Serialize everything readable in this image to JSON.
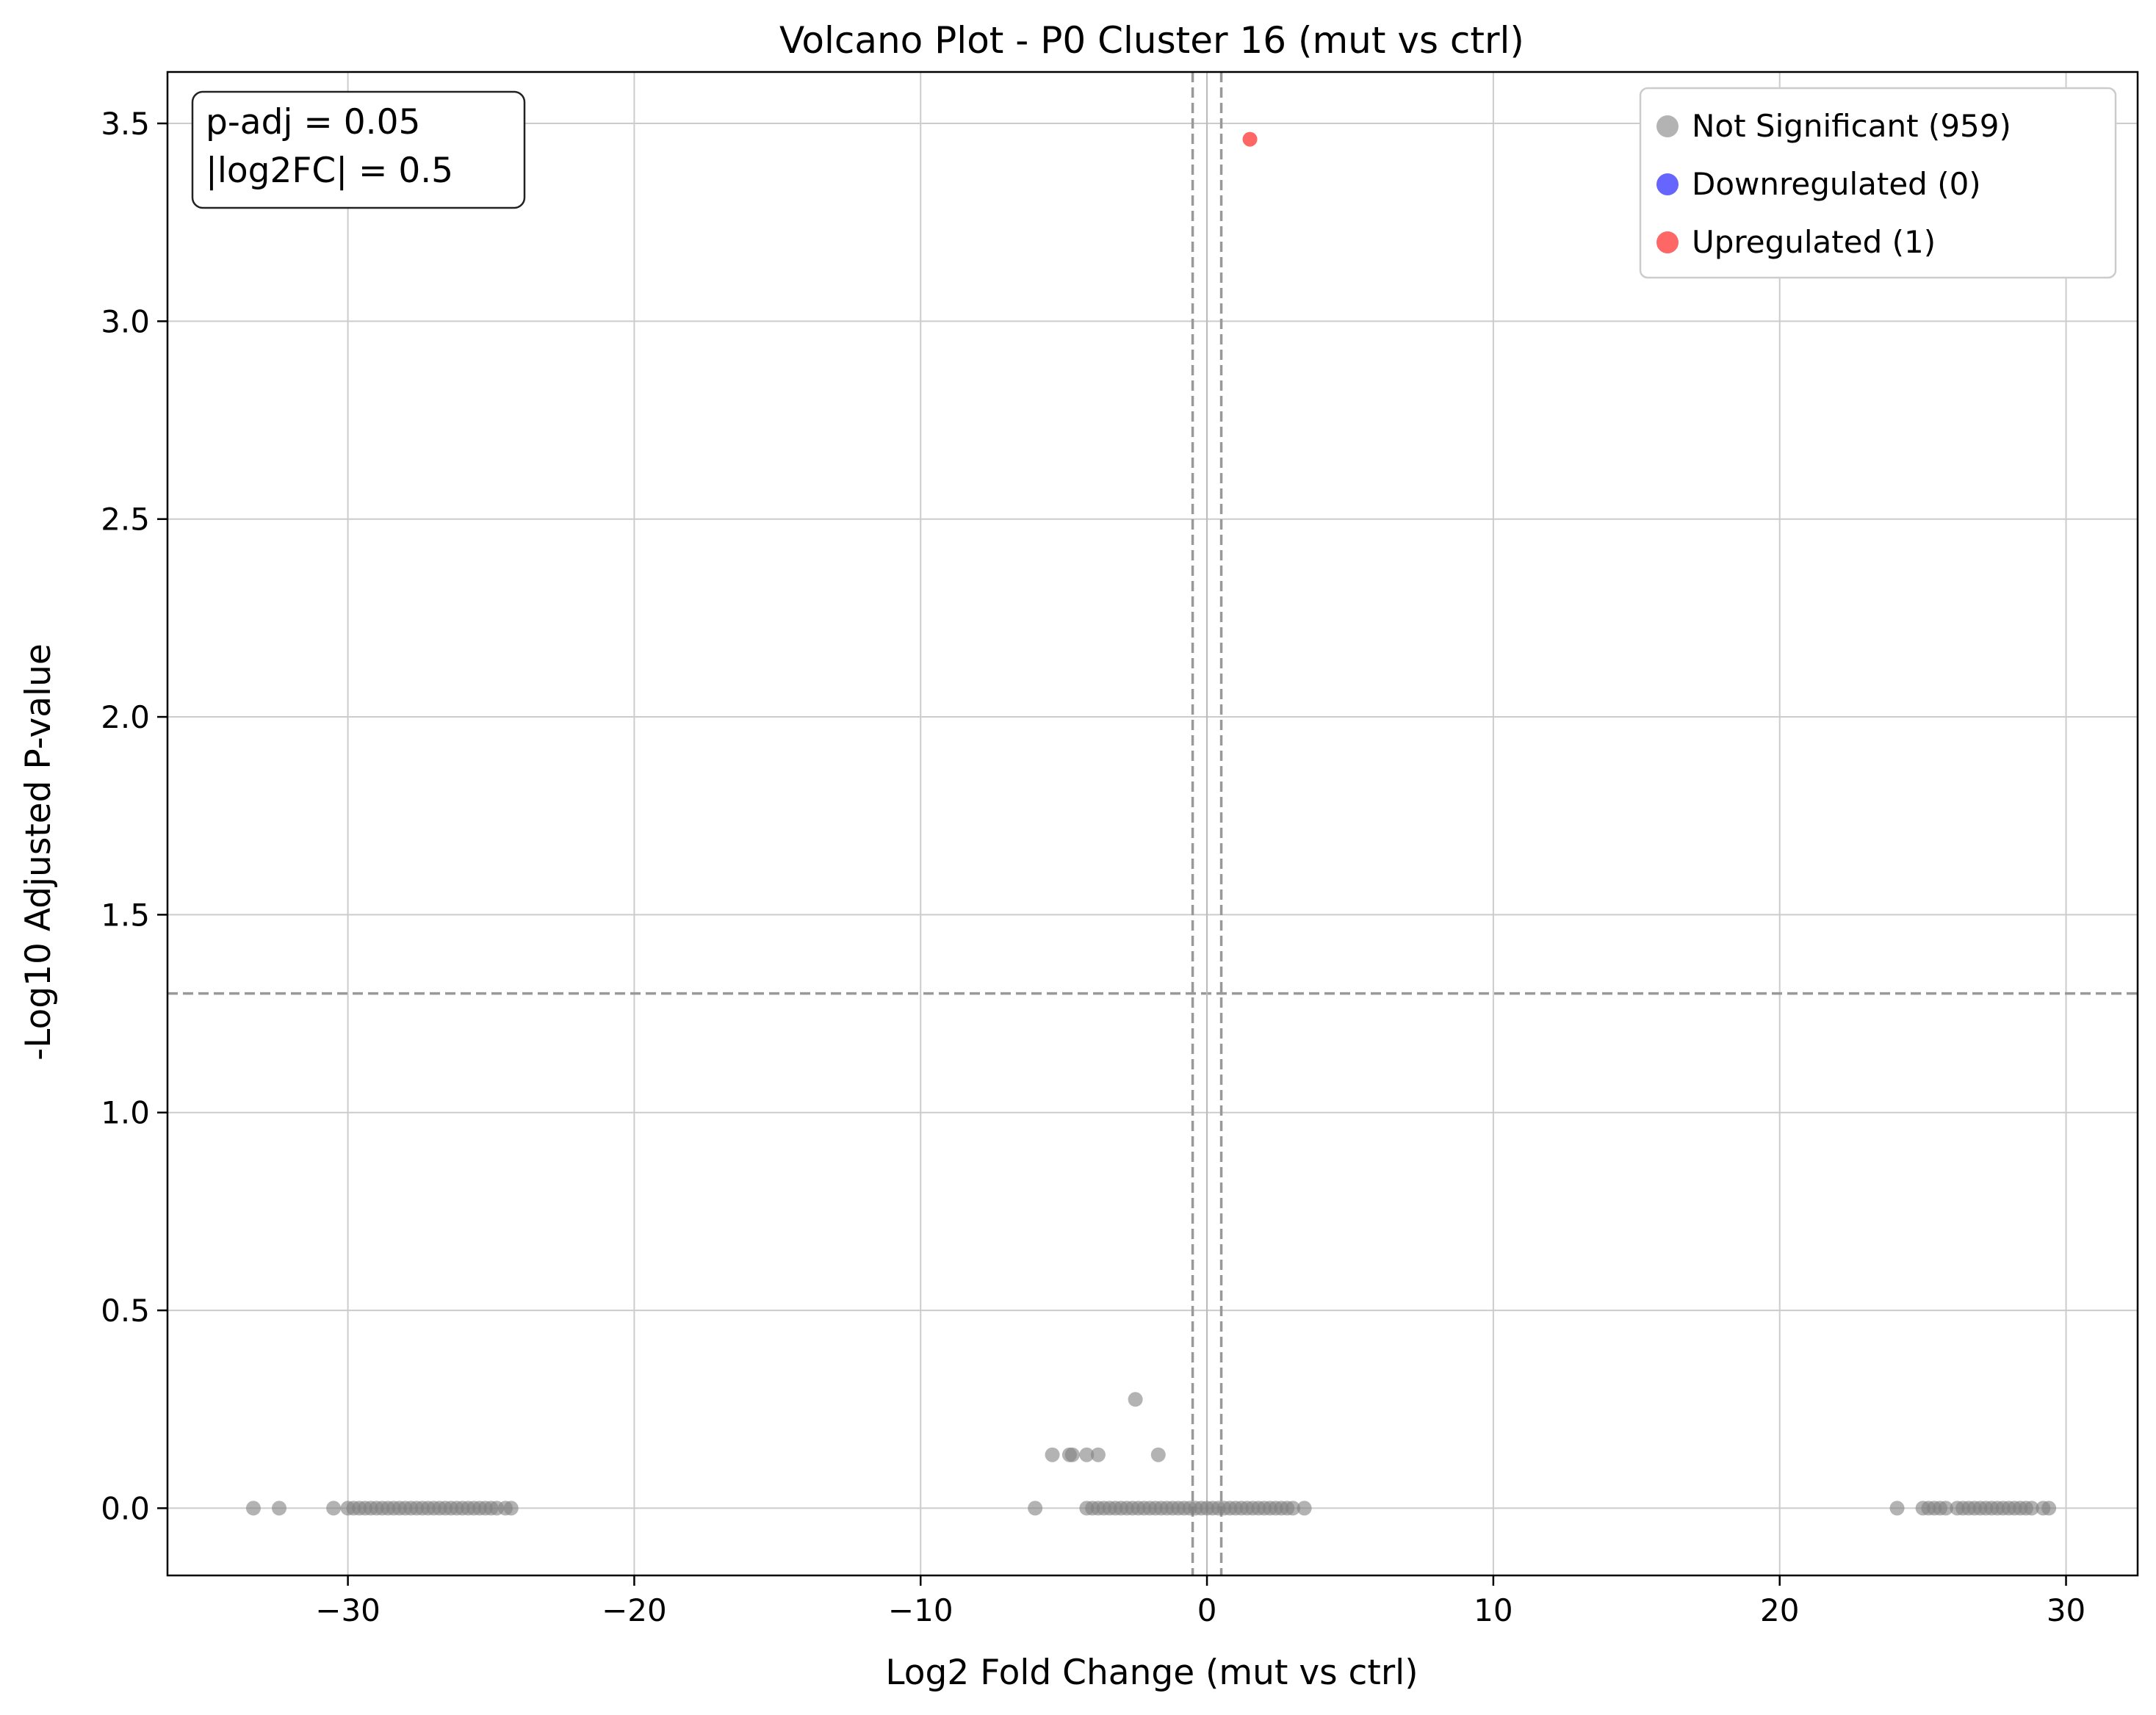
{
  "chart_data": {
    "type": "scatter",
    "title": "Volcano Plot - P0 Cluster 16 (mut vs ctrl)",
    "xlabel": "Log2 Fold Change (mut vs ctrl)",
    "ylabel": "-Log10 Adjusted P-value",
    "xlim": [
      -36.3,
      32.5
    ],
    "ylim": [
      -0.17,
      3.63
    ],
    "xticks": [
      -30,
      -20,
      -10,
      0,
      10,
      20,
      30
    ],
    "xtick_labels": [
      "−30",
      "−20",
      "−10",
      "0",
      "10",
      "20",
      "30"
    ],
    "yticks": [
      0.0,
      0.5,
      1.0,
      1.5,
      2.0,
      2.5,
      3.0,
      3.5
    ],
    "ytick_labels": [
      "0.0",
      "0.5",
      "1.0",
      "1.5",
      "2.0",
      "2.5",
      "3.0",
      "3.5"
    ],
    "grid": true,
    "thresholds": {
      "padj_line_y": 1.301,
      "fc_lines_x": [
        -0.5,
        0.5
      ],
      "zero_line_x": 0
    },
    "annotation": [
      "p-adj = 0.05",
      "|log2FC| = 0.5"
    ],
    "legend": {
      "position": "top-right",
      "entries": [
        {
          "label": "Not Significant (959)",
          "color": "#808080"
        },
        {
          "label": "Downregulated (0)",
          "color": "#0000ff"
        },
        {
          "label": "Upregulated (1)",
          "color": "#ff0000"
        }
      ]
    },
    "series": [
      {
        "name": "Not Significant",
        "color": "#808080",
        "points": [
          [
            -33.3,
            0
          ],
          [
            -32.4,
            0
          ],
          [
            -30.5,
            0
          ],
          [
            -30.0,
            0
          ],
          [
            -29.8,
            0
          ],
          [
            -29.6,
            0
          ],
          [
            -29.4,
            0
          ],
          [
            -29.2,
            0
          ],
          [
            -29.0,
            0
          ],
          [
            -28.8,
            0
          ],
          [
            -28.6,
            0
          ],
          [
            -28.4,
            0
          ],
          [
            -28.2,
            0
          ],
          [
            -28.0,
            0
          ],
          [
            -27.8,
            0
          ],
          [
            -27.6,
            0
          ],
          [
            -27.4,
            0
          ],
          [
            -27.2,
            0
          ],
          [
            -27.0,
            0
          ],
          [
            -26.8,
            0
          ],
          [
            -26.6,
            0
          ],
          [
            -26.4,
            0
          ],
          [
            -26.2,
            0
          ],
          [
            -26.0,
            0
          ],
          [
            -25.8,
            0
          ],
          [
            -25.6,
            0
          ],
          [
            -25.4,
            0
          ],
          [
            -25.2,
            0
          ],
          [
            -25.0,
            0
          ],
          [
            -24.8,
            0
          ],
          [
            -24.5,
            0
          ],
          [
            -24.3,
            0
          ],
          [
            -6.0,
            0
          ],
          [
            -4.2,
            0
          ],
          [
            -4.0,
            0
          ],
          [
            -3.8,
            0
          ],
          [
            -3.6,
            0
          ],
          [
            -3.4,
            0
          ],
          [
            -3.2,
            0
          ],
          [
            -3.0,
            0
          ],
          [
            -2.8,
            0
          ],
          [
            -2.6,
            0
          ],
          [
            -2.4,
            0
          ],
          [
            -2.2,
            0
          ],
          [
            -2.0,
            0
          ],
          [
            -1.8,
            0
          ],
          [
            -1.6,
            0
          ],
          [
            -1.4,
            0
          ],
          [
            -1.2,
            0
          ],
          [
            -1.0,
            0
          ],
          [
            -0.8,
            0
          ],
          [
            -0.6,
            0
          ],
          [
            -0.4,
            0
          ],
          [
            -0.2,
            0
          ],
          [
            0.0,
            0
          ],
          [
            0.2,
            0
          ],
          [
            0.4,
            0
          ],
          [
            0.6,
            0
          ],
          [
            0.8,
            0
          ],
          [
            1.0,
            0
          ],
          [
            1.2,
            0
          ],
          [
            1.4,
            0
          ],
          [
            1.6,
            0
          ],
          [
            1.8,
            0
          ],
          [
            2.0,
            0
          ],
          [
            2.2,
            0
          ],
          [
            2.4,
            0
          ],
          [
            2.6,
            0
          ],
          [
            2.8,
            0
          ],
          [
            3.0,
            0
          ],
          [
            3.4,
            0
          ],
          [
            24.1,
            0
          ],
          [
            25.0,
            0
          ],
          [
            25.2,
            0
          ],
          [
            25.4,
            0
          ],
          [
            25.6,
            0
          ],
          [
            25.8,
            0
          ],
          [
            26.2,
            0
          ],
          [
            26.4,
            0
          ],
          [
            26.6,
            0
          ],
          [
            26.8,
            0
          ],
          [
            27.0,
            0
          ],
          [
            27.2,
            0
          ],
          [
            27.4,
            0
          ],
          [
            27.6,
            0
          ],
          [
            27.8,
            0
          ],
          [
            28.0,
            0
          ],
          [
            28.2,
            0
          ],
          [
            28.4,
            0
          ],
          [
            28.6,
            0
          ],
          [
            28.8,
            0
          ],
          [
            29.2,
            0
          ],
          [
            29.4,
            0
          ],
          [
            -2.5,
            0.275
          ],
          [
            -5.4,
            0.135
          ],
          [
            -4.8,
            0.135
          ],
          [
            -4.7,
            0.135
          ],
          [
            -4.2,
            0.135
          ],
          [
            -3.8,
            0.135
          ],
          [
            -1.7,
            0.135
          ]
        ]
      },
      {
        "name": "Downregulated",
        "color": "#0000ff",
        "points": []
      },
      {
        "name": "Upregulated",
        "color": "#ff0000",
        "points": [
          [
            1.5,
            3.46
          ]
        ]
      }
    ]
  }
}
